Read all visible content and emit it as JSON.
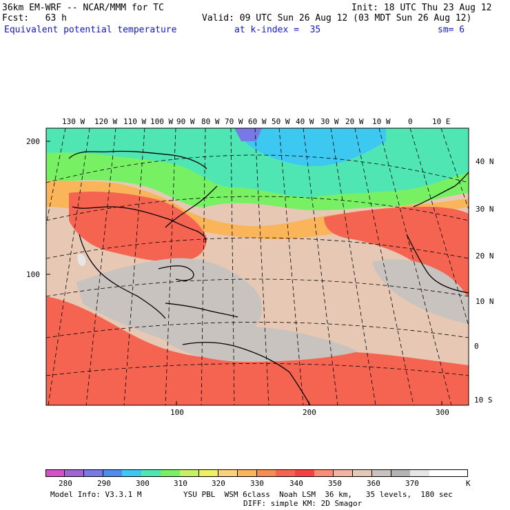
{
  "header": {
    "model_title": "36km EM-WRF -- NCAR/MMM for TC",
    "init": "Init: 18 UTC Thu 23 Aug 12",
    "fcst": "Fcst:   63 h",
    "valid": "Valid: 09 UTC Sun 26 Aug 12 (03 MDT Sun 26 Aug 12)",
    "field": "Equivalent potential temperature",
    "level": "at k-index =  35",
    "smoothing": "sm= 6"
  },
  "map": {
    "top_longitude_labels": [
      "130 W",
      "120 W",
      "110 W",
      "100 W",
      "90 W",
      "80 W",
      "70 W",
      "60 W",
      "50 W",
      "40 W",
      "30 W",
      "20 W",
      "10 W",
      "0",
      "10 E"
    ],
    "right_latitude_labels": [
      "40 N",
      "30 N",
      "20 N",
      "10 N",
      "0",
      "10 S"
    ],
    "left_grid_labels": [
      "200",
      "100"
    ],
    "bottom_grid_labels": [
      "100",
      "200",
      "300"
    ],
    "colors": {
      "cold": "#3cc8f0",
      "cool": "#50e6b4",
      "mild": "#78f064",
      "warm": "#fab45a",
      "hot": "#f56450",
      "tropical_land": "#f5413c",
      "ocean_moist": "#e6c8b4",
      "high_gray": "#c8c3be",
      "borders": "#000000",
      "grid": "#000000"
    }
  },
  "colorbar": {
    "labels": [
      "280",
      "290",
      "300",
      "310",
      "320",
      "330",
      "340",
      "350",
      "360",
      "370",
      "K"
    ],
    "colors": [
      "#d250c8",
      "#a064d2",
      "#7878e6",
      "#508cf0",
      "#3cc8f0",
      "#50e6b4",
      "#78f064",
      "#c8f064",
      "#f0f064",
      "#fad278",
      "#fab45a",
      "#f58c50",
      "#f56450",
      "#f54141",
      "#fa8c78",
      "#f0b4a0",
      "#e6c8b4",
      "#c8c3be",
      "#b4b4b4",
      "#e6e6e6",
      "#ffffff",
      "#ffffff"
    ]
  },
  "footer": {
    "model_info": "Model Info: V3.3.1 M",
    "physics": "YSU PBL  WSM 6class  Noah LSM  36 km,   35 levels,  180 sec",
    "diffusion": "DIFF: simple KM: 2D Smagor"
  }
}
